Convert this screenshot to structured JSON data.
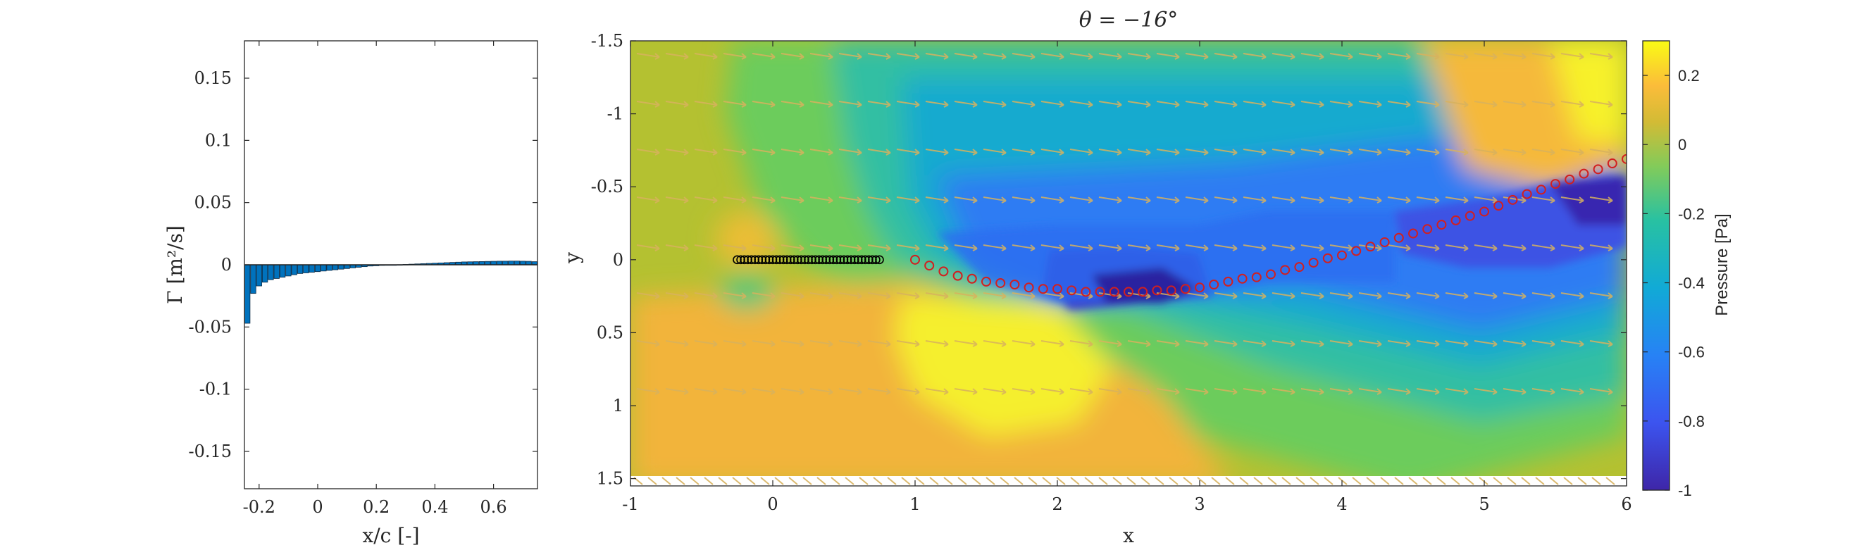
{
  "chart_data": [
    {
      "type": "bar",
      "xlabel": "x/c [-]",
      "ylabel": "Γ [m²/s]",
      "xlim": [
        -0.25,
        0.75
      ],
      "ylim": [
        -0.18,
        0.18
      ],
      "xticks": [
        -0.2,
        0,
        0.2,
        0.4,
        0.6
      ],
      "xtick_labels": [
        "-0.2",
        "0",
        "0.2",
        "0.4",
        "0.6"
      ],
      "yticks": [
        0.15,
        0.1,
        0.05,
        0,
        -0.05,
        -0.1,
        -0.15
      ],
      "ytick_labels": [
        "0.15",
        "0.1",
        "0.05",
        "0",
        "-0.05",
        "-0.1",
        "-0.15"
      ],
      "bar_color": "#0072BD",
      "x": [
        -0.24,
        -0.22,
        -0.2,
        -0.18,
        -0.16,
        -0.14,
        -0.12,
        -0.1,
        -0.08,
        -0.06,
        -0.04,
        -0.02,
        0.0,
        0.02,
        0.04,
        0.06,
        0.08,
        0.1,
        0.12,
        0.14,
        0.16,
        0.18,
        0.2,
        0.22,
        0.24,
        0.26,
        0.28,
        0.3,
        0.32,
        0.34,
        0.36,
        0.38,
        0.4,
        0.42,
        0.44,
        0.46,
        0.48,
        0.5,
        0.52,
        0.54,
        0.56,
        0.58,
        0.6,
        0.62,
        0.64,
        0.66,
        0.68,
        0.7,
        0.72,
        0.74
      ],
      "values": [
        -0.047,
        -0.023,
        -0.017,
        -0.014,
        -0.012,
        -0.011,
        -0.01,
        -0.009,
        -0.008,
        -0.007,
        -0.0065,
        -0.006,
        -0.0055,
        -0.005,
        -0.0045,
        -0.004,
        -0.0035,
        -0.003,
        -0.0025,
        -0.002,
        -0.0015,
        -0.001,
        -0.0008,
        -0.0005,
        -0.0003,
        -0.0001,
        0.0001,
        0.0003,
        0.0005,
        0.0007,
        0.0009,
        0.0011,
        0.0013,
        0.0015,
        0.0017,
        0.0019,
        0.0021,
        0.0023,
        0.0024,
        0.0025,
        0.0026,
        0.0027,
        0.0028,
        0.0029,
        0.0029,
        0.003,
        0.003,
        0.0029,
        0.0028,
        0.0025
      ]
    },
    {
      "type": "heatmap",
      "title": "θ = −16°",
      "xlabel": "x",
      "ylabel": "y",
      "xlim": [
        -1,
        6
      ],
      "ylim": [
        -1.5,
        1.55
      ],
      "y_reversed": true,
      "xticks": [
        -1,
        0,
        1,
        2,
        3,
        4,
        5,
        6
      ],
      "xtick_labels": [
        "-1",
        "0",
        "1",
        "2",
        "3",
        "4",
        "5",
        "6"
      ],
      "yticks": [
        -1.5,
        -1,
        -0.5,
        0,
        0.5,
        1,
        1.5
      ],
      "ytick_labels": [
        "-1.5",
        "-1",
        "-0.5",
        "0",
        "0.5",
        "1",
        "1.5"
      ],
      "colorbar": {
        "label": "Pressure [Pa]",
        "range": [
          -1,
          0.3
        ],
        "ticks": [
          0.2,
          0,
          -0.2,
          -0.4,
          -0.6,
          -0.8,
          -1
        ],
        "tick_labels": [
          "0.2",
          "0",
          "-0.2",
          "-0.4",
          "-0.6",
          "-0.8",
          "-1"
        ]
      },
      "body_points": {
        "marker": "black open circle",
        "y": 0.0,
        "x": [
          -0.25,
          -0.225,
          -0.2,
          -0.175,
          -0.15,
          -0.125,
          -0.1,
          -0.075,
          -0.05,
          -0.025,
          0,
          0.025,
          0.05,
          0.075,
          0.1,
          0.125,
          0.15,
          0.175,
          0.2,
          0.225,
          0.25,
          0.275,
          0.3,
          0.325,
          0.35,
          0.375,
          0.4,
          0.425,
          0.45,
          0.475,
          0.5,
          0.525,
          0.55,
          0.575,
          0.6,
          0.625,
          0.65,
          0.675,
          0.7,
          0.725,
          0.75
        ]
      },
      "wake_points": {
        "marker": "red open circle",
        "x": [
          1.0,
          1.1,
          1.2,
          1.3,
          1.4,
          1.5,
          1.6,
          1.7,
          1.8,
          1.9,
          2.0,
          2.1,
          2.2,
          2.3,
          2.4,
          2.5,
          2.6,
          2.7,
          2.8,
          2.9,
          3.0,
          3.1,
          3.2,
          3.3,
          3.4,
          3.5,
          3.6,
          3.7,
          3.8,
          3.9,
          4.0,
          4.1,
          4.2,
          4.3,
          4.4,
          4.5,
          4.6,
          4.7,
          4.8,
          4.9,
          5.0,
          5.1,
          5.2,
          5.3,
          5.4,
          5.5,
          5.6,
          5.7,
          5.8,
          5.9,
          6.0
        ],
        "y": [
          0.0,
          0.04,
          0.08,
          0.11,
          0.13,
          0.15,
          0.16,
          0.17,
          0.19,
          0.2,
          0.2,
          0.21,
          0.22,
          0.22,
          0.22,
          0.22,
          0.22,
          0.21,
          0.21,
          0.2,
          0.19,
          0.17,
          0.15,
          0.13,
          0.12,
          0.1,
          0.07,
          0.05,
          0.02,
          -0.01,
          -0.03,
          -0.06,
          -0.09,
          -0.12,
          -0.15,
          -0.18,
          -0.21,
          -0.24,
          -0.27,
          -0.3,
          -0.33,
          -0.37,
          -0.41,
          -0.45,
          -0.48,
          -0.52,
          -0.55,
          -0.59,
          -0.62,
          -0.66,
          -0.69
        ]
      }
    }
  ]
}
